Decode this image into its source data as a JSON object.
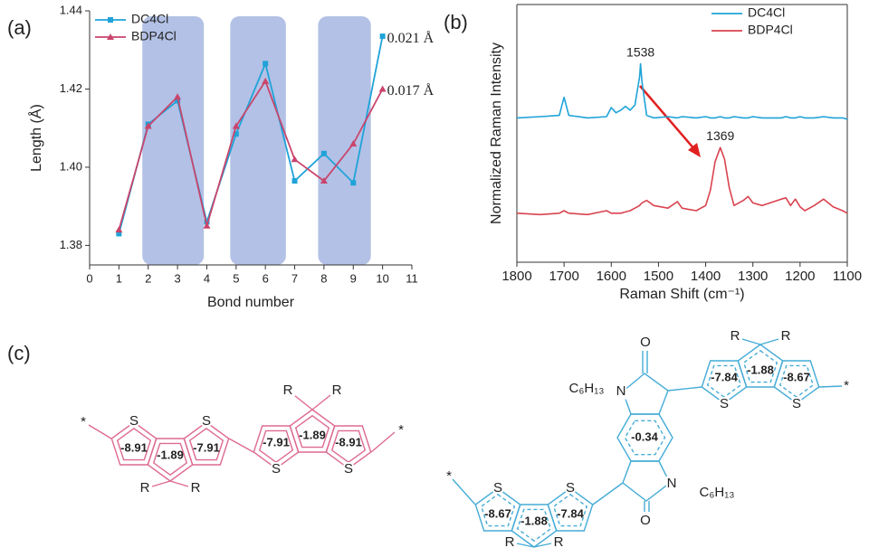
{
  "panels": [
    "(a)",
    "(b)",
    "(c)"
  ],
  "chart_data": [
    {
      "type": "line",
      "xlabel": "Bond number",
      "ylabel": "Length (Å)",
      "x": [
        1,
        2,
        3,
        4,
        5,
        6,
        7,
        8,
        9,
        10
      ],
      "xlim": [
        0,
        11
      ],
      "xticks": [
        0,
        1,
        2,
        3,
        4,
        5,
        6,
        7,
        8,
        9,
        10,
        11
      ],
      "ylim": [
        1.375,
        1.44
      ],
      "yticks": [
        1.38,
        {
          "value": 1.4,
          "label": "1.40"
        },
        1.42,
        1.44
      ],
      "highlights": [
        [
          1.8,
          3.9
        ],
        [
          4.8,
          6.7
        ],
        [
          7.8,
          9.6
        ]
      ],
      "highlight_color": "#b3c1e6",
      "legend": "upper left",
      "series": [
        {
          "name": "DC4Cl",
          "color": "#1fa3d8",
          "marker": "square",
          "annotation": "0.021 Å",
          "values": [
            1.383,
            1.411,
            1.417,
            1.386,
            1.4085,
            1.4265,
            1.3965,
            1.4035,
            1.396,
            1.4335
          ]
        },
        {
          "name": "BDP4Cl",
          "color": "#c9456c",
          "marker": "triangle",
          "annotation": "0.017 Å",
          "values": [
            1.384,
            1.4105,
            1.418,
            1.385,
            1.4105,
            1.422,
            1.402,
            1.3965,
            1.406,
            1.42
          ]
        }
      ]
    },
    {
      "type": "line",
      "xlabel": "Raman Shift (cm⁻¹)",
      "ylabel": "Normalized Raman Intensity",
      "x": [
        1800,
        1750,
        1710,
        1700,
        1690,
        1650,
        1610,
        1600,
        1590,
        1580,
        1570,
        1560,
        1550,
        1540,
        1538,
        1535,
        1525,
        1510,
        1480,
        1460,
        1450,
        1420,
        1400,
        1390,
        1380,
        1369,
        1360,
        1350,
        1340,
        1320,
        1310,
        1300,
        1280,
        1240,
        1230,
        1220,
        1210,
        1200,
        1190,
        1170,
        1150,
        1130,
        1110,
        1100
      ],
      "xlim": [
        1800,
        1100
      ],
      "xticks": [
        1800,
        1700,
        1600,
        1500,
        1400,
        1300,
        1200,
        1100
      ],
      "ylim": [
        0,
        1
      ],
      "legend": "upper right",
      "series": [
        {
          "name": "DC4Cl",
          "color": "#1fa3d8",
          "peak": 1538,
          "values": [
            0.56,
            0.565,
            0.57,
            0.64,
            0.57,
            0.56,
            0.565,
            0.6,
            0.58,
            0.59,
            0.605,
            0.59,
            0.61,
            0.72,
            0.77,
            0.7,
            0.57,
            0.56,
            0.565,
            0.56,
            0.565,
            0.56,
            0.565,
            0.56,
            0.56,
            0.565,
            0.56,
            0.56,
            0.565,
            0.56,
            0.56,
            0.565,
            0.56,
            0.56,
            0.565,
            0.56,
            0.56,
            0.565,
            0.56,
            0.56,
            0.565,
            0.56,
            0.56,
            0.555
          ]
        },
        {
          "name": "BDP4Cl",
          "color": "#d9434f",
          "peak": 1369,
          "values": [
            0.19,
            0.185,
            0.19,
            0.2,
            0.19,
            0.185,
            0.2,
            0.19,
            0.19,
            0.19,
            0.195,
            0.2,
            0.21,
            0.22,
            0.225,
            0.23,
            0.24,
            0.22,
            0.21,
            0.235,
            0.21,
            0.2,
            0.22,
            0.28,
            0.39,
            0.445,
            0.4,
            0.29,
            0.22,
            0.24,
            0.255,
            0.23,
            0.22,
            0.245,
            0.25,
            0.22,
            0.245,
            0.215,
            0.2,
            0.22,
            0.245,
            0.215,
            0.2,
            0.19
          ]
        }
      ]
    }
  ],
  "structures": {
    "molecules": [
      {
        "color": "#dd6a91",
        "ring_values": [
          -8.91,
          -1.89,
          -7.91,
          -7.91,
          -1.89,
          -8.91
        ],
        "atoms": [
          "*",
          "S",
          "S",
          "R",
          "R",
          "R",
          "R",
          "S",
          "S",
          "*"
        ]
      },
      {
        "color": "#45acd6",
        "ring_values": [
          -7.84,
          -1.88,
          -8.67,
          -0.34,
          -8.67,
          -1.88,
          -7.84
        ],
        "atoms": [
          "*",
          "S",
          "S",
          "R",
          "R",
          "O",
          "N",
          "C₆H₁₃",
          "O",
          "N",
          "C₆H₁₃",
          "*",
          "S",
          "S",
          "R",
          "R"
        ]
      }
    ]
  }
}
